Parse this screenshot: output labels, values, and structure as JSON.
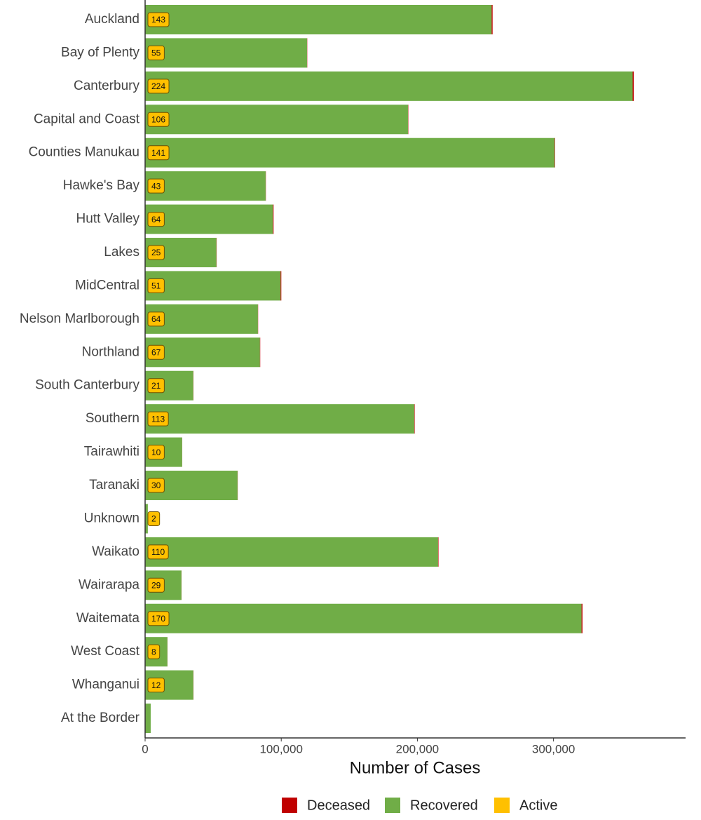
{
  "chart_data": {
    "type": "stacked-barh",
    "xlabel": "Number of Cases",
    "categories": [
      "Auckland",
      "Bay of Plenty",
      "Canterbury",
      "Capital and Coast",
      "Counties Manukau",
      "Hawke's Bay",
      "Hutt Valley",
      "Lakes",
      "MidCentral",
      "Nelson Marlborough",
      "Northland",
      "South Canterbury",
      "Southern",
      "Tairawhiti",
      "Taranaki",
      "Unknown",
      "Waikato",
      "Wairarapa",
      "Waitemata",
      "West Coast",
      "Whanganui",
      "At the Border"
    ],
    "series": [
      {
        "name": "Deceased",
        "color": "#c00000",
        "values": [
          700,
          150,
          800,
          200,
          300,
          150,
          500,
          150,
          500,
          150,
          200,
          100,
          300,
          50,
          100,
          0,
          300,
          50,
          700,
          50,
          80,
          0
        ]
      },
      {
        "name": "Recovered",
        "color": "#70ad47",
        "values": [
          254400,
          118900,
          357900,
          193100,
          300700,
          88500,
          93800,
          52400,
          99500,
          82800,
          84300,
          35400,
          197600,
          27200,
          67900,
          2000,
          215100,
          26700,
          320400,
          16400,
          35450,
          4100
        ]
      },
      {
        "name": "Active",
        "color": "#ffc000",
        "values": [
          143,
          55,
          224,
          106,
          141,
          43,
          64,
          25,
          51,
          64,
          67,
          21,
          113,
          10,
          30,
          2,
          110,
          29,
          170,
          8,
          12,
          null
        ]
      }
    ],
    "xlim": [
      0,
      397000
    ],
    "xticks": [
      0,
      {
        "value": 100000,
        "label": "100,000"
      },
      {
        "value": 200000,
        "label": "200,000"
      },
      {
        "value": 300000,
        "label": "300,000"
      }
    ]
  }
}
